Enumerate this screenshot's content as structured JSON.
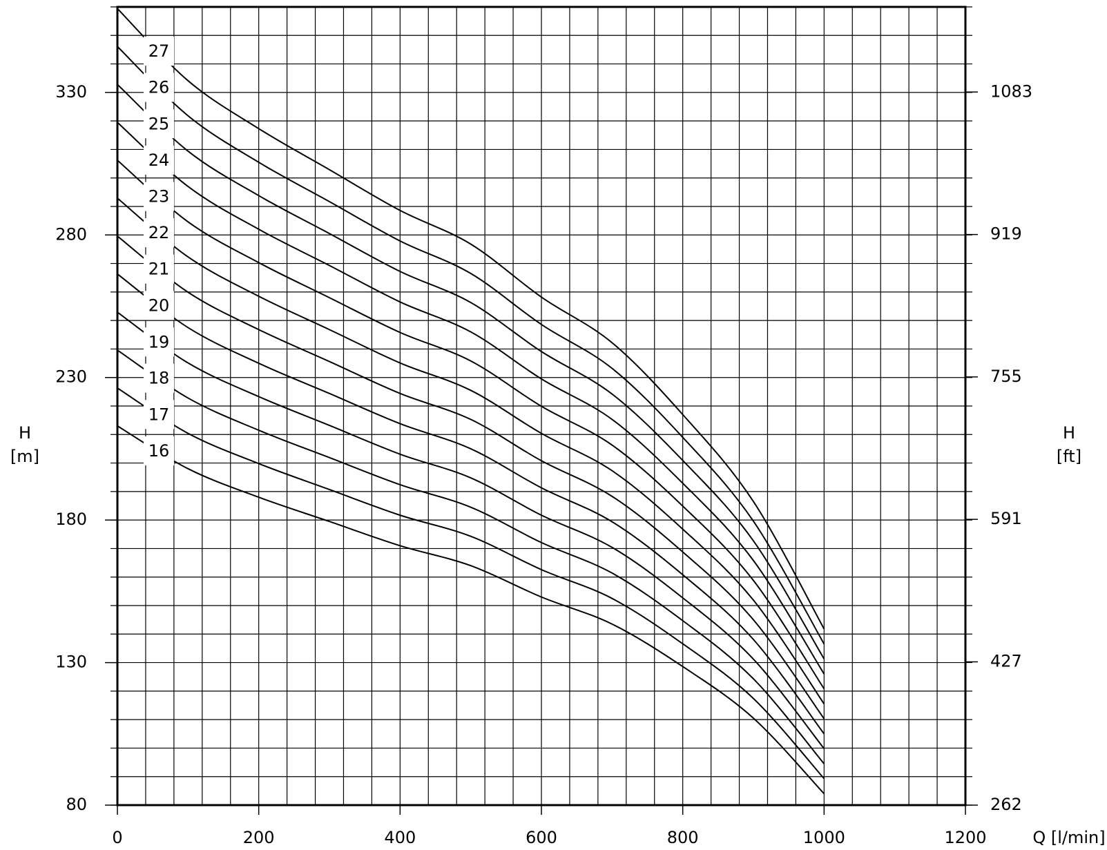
{
  "chart_data": {
    "type": "line",
    "x": [
      0,
      100,
      200,
      300,
      400,
      500,
      600,
      700,
      800,
      900,
      1000
    ],
    "series": [
      {
        "name": "16",
        "color": "#000000",
        "values": [
          213,
          198,
          188,
          179.5,
          171,
          164,
          153,
          143.5,
          128.6,
          110.5,
          84
        ]
      },
      {
        "name": "17",
        "color": "#000000",
        "values": [
          226.3,
          210.4,
          199.8,
          190.7,
          181.7,
          174.3,
          162.6,
          152.5,
          136.6,
          117.4,
          89.3
        ]
      },
      {
        "name": "18",
        "color": "#000000",
        "values": [
          239.6,
          222.8,
          211.5,
          201.9,
          192.4,
          184.5,
          172.1,
          161.4,
          144.7,
          124.3,
          94.5
        ]
      },
      {
        "name": "19",
        "color": "#000000",
        "values": [
          252.9,
          235.1,
          223.3,
          213.2,
          203.1,
          194.8,
          181.7,
          170.4,
          152.7,
          131.2,
          99.8
        ]
      },
      {
        "name": "20",
        "color": "#000000",
        "values": [
          266.3,
          247.5,
          235,
          224.4,
          213.8,
          205,
          191.3,
          179.4,
          160.8,
          138.1,
          105
        ]
      },
      {
        "name": "21",
        "color": "#000000",
        "values": [
          279.6,
          259.9,
          246.8,
          235.6,
          224.4,
          215.3,
          200.8,
          188.3,
          168.8,
          145,
          110.3
        ]
      },
      {
        "name": "22",
        "color": "#000000",
        "values": [
          292.9,
          272.3,
          258.5,
          246.8,
          235.1,
          225.5,
          210.4,
          197.3,
          176.8,
          151.9,
          115.5
        ]
      },
      {
        "name": "23",
        "color": "#000000",
        "values": [
          306.2,
          284.6,
          270.3,
          258,
          245.8,
          235.8,
          219.9,
          206.3,
          184.9,
          158.8,
          120.8
        ]
      },
      {
        "name": "24",
        "color": "#000000",
        "values": [
          319.5,
          297,
          282,
          269.3,
          256.5,
          246,
          229.5,
          215.3,
          192.9,
          165.8,
          126
        ]
      },
      {
        "name": "25",
        "color": "#000000",
        "values": [
          332.8,
          309.4,
          293.8,
          280.5,
          267.2,
          256.3,
          239.1,
          224.2,
          200.9,
          172.7,
          131.3
        ]
      },
      {
        "name": "26",
        "color": "#000000",
        "values": [
          346.1,
          321.8,
          305.5,
          291.7,
          277.9,
          266.5,
          248.6,
          233.2,
          209,
          179.6,
          136.5
        ]
      },
      {
        "name": "27",
        "color": "#000000",
        "values": [
          359.4,
          334.1,
          317.3,
          302.9,
          288.6,
          276.8,
          258.2,
          242.2,
          217,
          186.5,
          141.8
        ]
      }
    ],
    "xlabel": "Q [l/min]",
    "ylabel": [
      "H",
      "[m]"
    ],
    "y2label": [
      "H",
      "[ft]"
    ],
    "xlim": [
      0,
      1200
    ],
    "xticks": [
      0,
      200,
      400,
      600,
      800,
      1000,
      1200
    ],
    "ylim": [
      80,
      360
    ],
    "yticks": [
      80,
      130,
      180,
      230,
      280,
      330
    ],
    "y2lim": [
      262,
      1181
    ],
    "y2ticks": [
      262,
      427,
      591,
      755,
      919,
      1083
    ],
    "grid": true,
    "grid_step": {
      "x": 40,
      "y": 10
    }
  }
}
